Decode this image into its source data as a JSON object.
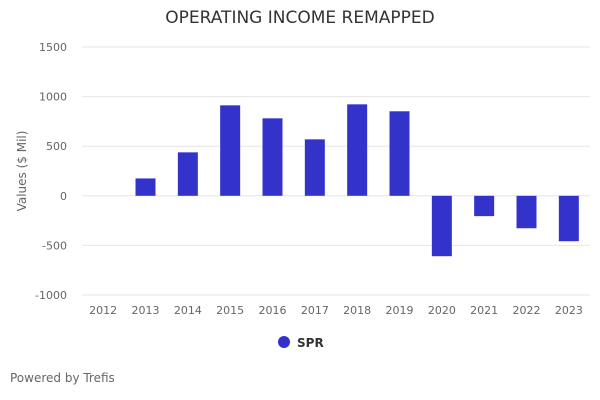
{
  "chart_data": {
    "type": "bar",
    "title": "OPERATING INCOME REMAPPED",
    "xlabel": "",
    "ylabel": "Values ($ Mil)",
    "ylim": [
      -1000,
      1500
    ],
    "yticks": [
      -1000,
      -500,
      0,
      500,
      1000,
      1500
    ],
    "grid": true,
    "legend_position": "bottom",
    "categories": [
      "2012",
      "2013",
      "2014",
      "2015",
      "2016",
      "2017",
      "2018",
      "2019",
      "2020",
      "2021",
      "2022",
      "2023"
    ],
    "series": [
      {
        "name": "SPR",
        "color": "#3333cc",
        "values": [
          null,
          175,
          438,
          912,
          781,
          569,
          922,
          852,
          -609,
          -205,
          -327,
          -458
        ]
      }
    ]
  },
  "footer": "Powered by Trefis"
}
